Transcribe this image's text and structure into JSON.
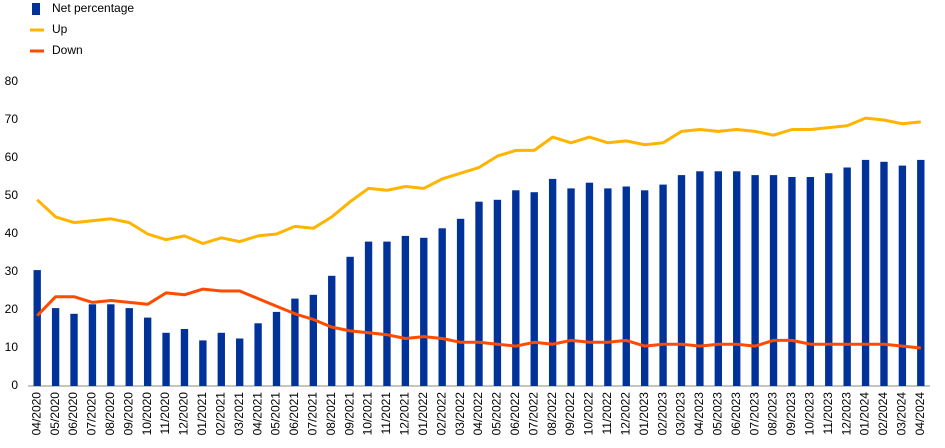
{
  "chart_data": {
    "type": "bar",
    "categories": [
      "04/2020",
      "05/2020",
      "06/2020",
      "07/2020",
      "08/2020",
      "09/2020",
      "10/2020",
      "11/2020",
      "12/2020",
      "01/2021",
      "02/2021",
      "03/2021",
      "04/2021",
      "05/2021",
      "06/2021",
      "07/2021",
      "08/2021",
      "09/2021",
      "10/2021",
      "11/2021",
      "12/2021",
      "01/2022",
      "02/2022",
      "03/2022",
      "04/2022",
      "05/2022",
      "06/2022",
      "07/2022",
      "08/2022",
      "09/2022",
      "10/2022",
      "11/2022",
      "12/2022",
      "01/2023",
      "02/2023",
      "03/2023",
      "04/2023",
      "05/2023",
      "06/2023",
      "07/2023",
      "08/2023",
      "09/2023",
      "10/2023",
      "11/2023",
      "12/2023",
      "01/2024",
      "02/2024",
      "03/2024",
      "04/2024"
    ],
    "series": [
      {
        "name": "Net percentage",
        "type": "bar",
        "color": "#003299",
        "values": [
          30.5,
          20.5,
          19,
          21.5,
          21.5,
          20.5,
          18,
          14,
          15,
          12,
          14,
          12.5,
          16.5,
          19.5,
          23,
          24,
          29,
          34,
          38,
          38,
          39.5,
          39,
          41.5,
          44,
          48.5,
          49,
          51.5,
          51,
          54.5,
          52,
          53.5,
          52,
          52.5,
          51.5,
          53,
          55.5,
          56.5,
          56.5,
          56.5,
          55.5,
          55.5,
          55,
          55,
          56,
          57.5,
          59.5,
          59,
          58,
          59.5
        ]
      },
      {
        "name": "Up",
        "type": "line",
        "color": "#ffb400",
        "values": [
          49,
          44.5,
          43,
          43.5,
          44,
          43,
          40,
          38.5,
          39.5,
          37.5,
          39,
          38,
          39.5,
          40,
          42,
          41.5,
          44.5,
          48.5,
          52,
          51.5,
          52.5,
          52,
          54.5,
          56,
          57.5,
          60.5,
          62,
          62,
          65.5,
          64,
          65.5,
          64,
          64.5,
          63.5,
          64,
          67,
          67.5,
          67,
          67.5,
          67,
          66,
          67.5,
          67.5,
          68,
          68.5,
          70.5,
          70,
          69,
          69.5
        ]
      },
      {
        "name": "Down",
        "type": "line",
        "color": "#ff4b00",
        "values": [
          18.5,
          23.5,
          23.5,
          22,
          22.5,
          22,
          21.5,
          24.5,
          24,
          25.5,
          25,
          25,
          23,
          21,
          19,
          17.5,
          15.5,
          14.5,
          14,
          13.5,
          12.5,
          13,
          12.5,
          11.5,
          11.5,
          11,
          10.5,
          11.5,
          11,
          12,
          11.5,
          11.5,
          12,
          10.5,
          11,
          11,
          10.5,
          11,
          11,
          10.5,
          12,
          12,
          11,
          11,
          11,
          11,
          11,
          10.5,
          10
        ]
      }
    ],
    "ylim": [
      0,
      80
    ],
    "yticks": [
      0,
      10,
      20,
      30,
      40,
      50,
      60,
      70,
      80
    ],
    "grid": false,
    "legend": "top-left"
  }
}
